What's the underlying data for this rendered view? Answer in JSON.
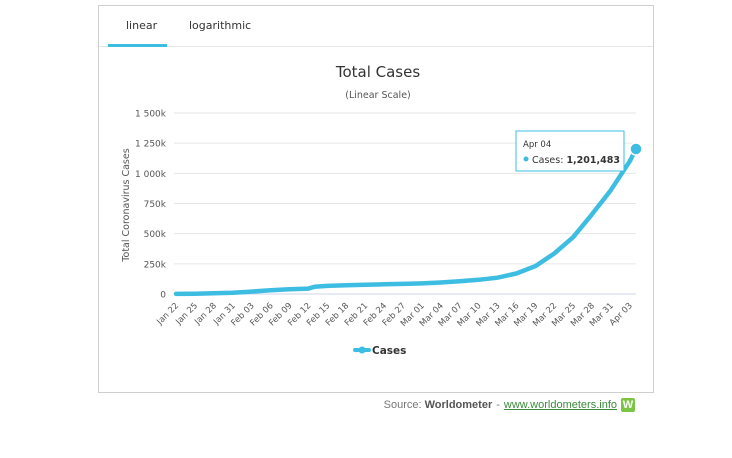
{
  "tabs": [
    {
      "label": "linear",
      "active": true
    },
    {
      "label": "logarithmic",
      "active": false
    }
  ],
  "source": {
    "prefix": "Source:",
    "brand": "Worldometer",
    "separator": "-",
    "link": "www.worldometers.info",
    "logo_letter": "W"
  },
  "colors": {
    "series": "#3ebde3",
    "tab_accent": "#3ebde3",
    "grid": "#e6e6e6",
    "link": "#3c8a3c",
    "logo": "#7cc443"
  },
  "chart_data": {
    "type": "line",
    "title": "Total Cases",
    "subtitle": "(Linear Scale)",
    "ylabel": "Total Coronavirus Cases",
    "xlabel": "",
    "ylim": [
      0,
      1500000
    ],
    "yticks": [
      0,
      250000,
      500000,
      750000,
      1000000,
      1250000,
      1500000
    ],
    "ytick_labels": [
      "0",
      "250k",
      "500k",
      "750k",
      "1 000k",
      "1 250k",
      "1 500k"
    ],
    "xtick_labels": [
      "Jan 22",
      "Jan 25",
      "Jan 28",
      "Jan 31",
      "Feb 03",
      "Feb 06",
      "Feb 09",
      "Feb 12",
      "Feb 15",
      "Feb 18",
      "Feb 21",
      "Feb 24",
      "Feb 27",
      "Mar 01",
      "Mar 04",
      "Mar 07",
      "Mar 10",
      "Mar 13",
      "Mar 16",
      "Mar 19",
      "Mar 22",
      "Mar 25",
      "Mar 28",
      "Mar 31",
      "Apr 03"
    ],
    "grid": true,
    "legend_position": "bottom",
    "series": [
      {
        "name": "Cases",
        "x": [
          "Jan 22",
          "Jan 25",
          "Jan 28",
          "Jan 31",
          "Feb 03",
          "Feb 06",
          "Feb 09",
          "Feb 12",
          "Feb 13",
          "Feb 15",
          "Feb 18",
          "Feb 21",
          "Feb 24",
          "Feb 27",
          "Mar 01",
          "Mar 04",
          "Mar 07",
          "Mar 10",
          "Mar 13",
          "Mar 16",
          "Mar 19",
          "Mar 22",
          "Mar 25",
          "Mar 28",
          "Mar 31",
          "Apr 03",
          "Apr 04"
        ],
        "values": [
          580,
          2900,
          6000,
          10000,
          20000,
          31000,
          40000,
          45000,
          60000,
          67000,
          73000,
          77000,
          80000,
          84000,
          88000,
          95000,
          105000,
          118000,
          135000,
          170000,
          230000,
          335000,
          470000,
          660000,
          860000,
          1100000,
          1201483
        ]
      }
    ],
    "tooltip": {
      "date": "Apr 04",
      "series": "Cases",
      "value": "1,201,483"
    }
  }
}
